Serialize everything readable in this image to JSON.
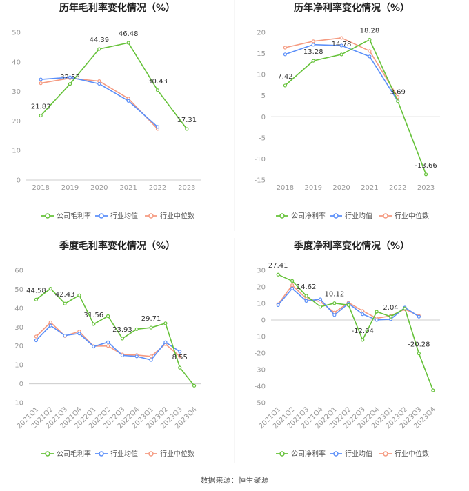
{
  "colors": {
    "company": "#66c23a",
    "industry_avg": "#5b8ff9",
    "industry_median": "#f59a80",
    "axis": "#cccccc",
    "text": "#999999"
  },
  "legend": [
    "公司毛利率",
    "行业均值",
    "行业中位数"
  ],
  "legend_net": [
    "公司净利率",
    "行业均值",
    "行业中位数"
  ],
  "source": "数据来源：恒生聚源",
  "chart_data": [
    {
      "type": "line",
      "title": "历年毛利率变化情况（%）",
      "x": [
        "2018",
        "2019",
        "2020",
        "2021",
        "2022",
        "2023"
      ],
      "ylim": [
        0,
        50
      ],
      "yticks": [
        0,
        10,
        20,
        30,
        40,
        50
      ],
      "series": [
        {
          "name": "公司毛利率",
          "values": [
            21.83,
            32.53,
            44.39,
            46.48,
            30.43,
            17.31
          ]
        },
        {
          "name": "行业均值",
          "values": [
            34.1,
            34.8,
            32.6,
            26.8,
            18.0,
            null
          ]
        },
        {
          "name": "行业中位数",
          "values": [
            32.8,
            34.5,
            33.5,
            27.6,
            17.3,
            null
          ]
        }
      ],
      "data_labels": [
        "21.83",
        "32.53",
        "44.39",
        "46.48",
        "30.43",
        "17.31"
      ]
    },
    {
      "type": "line",
      "title": "历年净利率变化情况（%）",
      "x": [
        "2018",
        "2019",
        "2020",
        "2021",
        "2022",
        "2023"
      ],
      "ylim": [
        -15,
        20
      ],
      "yticks": [
        -15,
        -10,
        -5,
        0,
        5,
        10,
        15,
        20
      ],
      "series": [
        {
          "name": "公司净利率",
          "values": [
            7.42,
            13.28,
            14.78,
            18.28,
            3.69,
            -13.66
          ]
        },
        {
          "name": "行业均值",
          "values": [
            14.8,
            17.1,
            16.9,
            14.3,
            3.7,
            null
          ]
        },
        {
          "name": "行业中位数",
          "values": [
            16.4,
            17.9,
            18.7,
            15.6,
            4.7,
            null
          ]
        }
      ],
      "data_labels": [
        "7.42",
        "13.28",
        "14.78",
        "18.28",
        "3.69",
        "-13.66"
      ]
    },
    {
      "type": "line",
      "title": "季度毛利率变化情况（%）",
      "x": [
        "2021Q1",
        "2021Q2",
        "2021Q3",
        "2021Q4",
        "2022Q1",
        "2022Q2",
        "2022Q3",
        "2022Q4",
        "2023Q1",
        "2023Q2",
        "2023Q3",
        "2023Q4"
      ],
      "ylim": [
        -10,
        60
      ],
      "yticks": [
        -10,
        0,
        10,
        20,
        30,
        40,
        50,
        60
      ],
      "series": [
        {
          "name": "公司毛利率",
          "values": [
            44.58,
            50.3,
            42.43,
            46.8,
            31.56,
            35.8,
            23.93,
            28.9,
            29.71,
            32.0,
            8.55,
            -1.0
          ]
        },
        {
          "name": "行业均值",
          "values": [
            23.0,
            30.8,
            25.5,
            26.6,
            19.7,
            22.0,
            15.0,
            14.5,
            12.6,
            22.0,
            17.0,
            null
          ]
        },
        {
          "name": "行业中位数",
          "values": [
            25.0,
            32.5,
            25.3,
            27.7,
            19.9,
            20.0,
            15.5,
            15.2,
            14.5,
            21.0,
            14.5,
            null
          ]
        }
      ],
      "data_labels": [
        "44.58",
        "",
        "42.43",
        "",
        "31.56",
        "",
        "23.93",
        "",
        "29.71",
        "",
        "8.55",
        ""
      ]
    },
    {
      "type": "line",
      "title": "季度净利率变化情况（%）",
      "x": [
        "2021Q1",
        "2021Q2",
        "2021Q3",
        "2021Q4",
        "2022Q1",
        "2022Q2",
        "2022Q3",
        "2022Q4",
        "2023Q1",
        "2023Q2",
        "2023Q3",
        "2023Q4"
      ],
      "ylim": [
        -50,
        30
      ],
      "yticks": [
        -50,
        -40,
        -30,
        -20,
        -10,
        0,
        10,
        20,
        30
      ],
      "series": [
        {
          "name": "公司净利率",
          "values": [
            27.41,
            23.6,
            14.62,
            8.0,
            10.12,
            9.0,
            -12.04,
            5.0,
            2.04,
            7.0,
            -20.28,
            -42.5
          ]
        },
        {
          "name": "行业均值",
          "values": [
            9.0,
            19.0,
            11.5,
            12.5,
            3.0,
            10.0,
            3.5,
            0.0,
            0.5,
            7.5,
            2.0,
            null
          ]
        },
        {
          "name": "行业中位数",
          "values": [
            9.5,
            21.0,
            13.0,
            11.0,
            4.5,
            10.5,
            5.5,
            1.0,
            2.5,
            6.5,
            2.5,
            null
          ]
        }
      ],
      "data_labels": [
        "27.41",
        "",
        "14.62",
        "",
        "10.12",
        "",
        "-12.04",
        "",
        "2.04",
        "",
        "-20.28",
        ""
      ]
    }
  ]
}
